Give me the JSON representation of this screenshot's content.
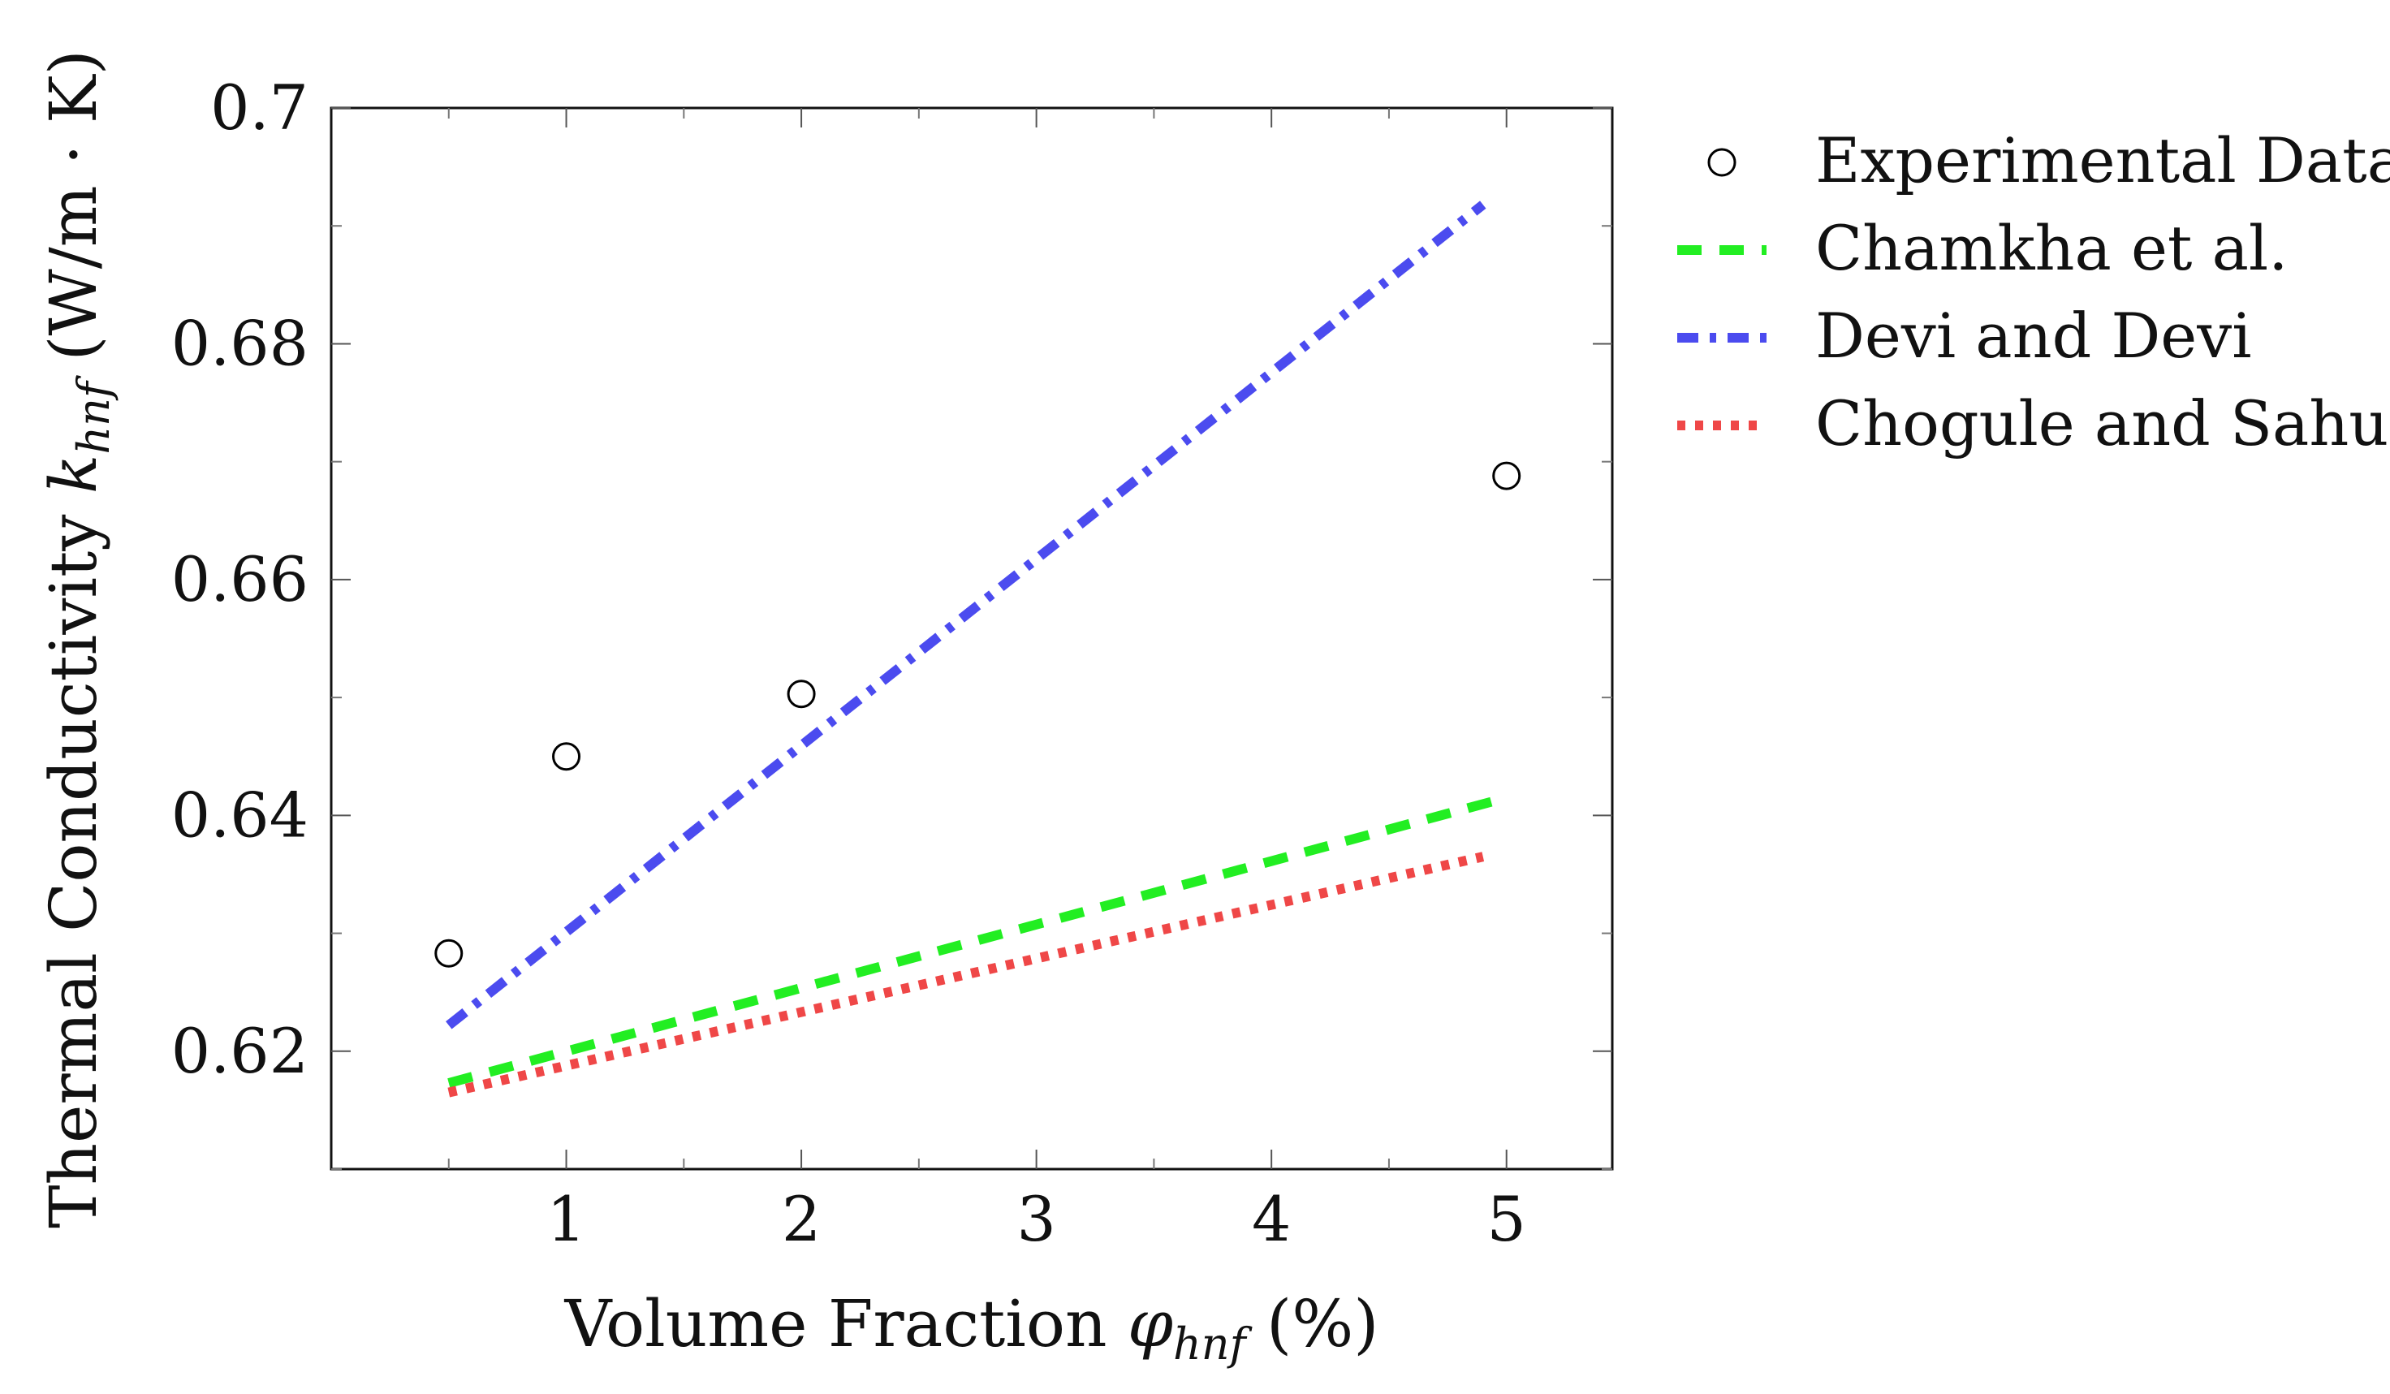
{
  "chart_data": {
    "type": "line",
    "title": "",
    "xlabel": {
      "prefix": "Volume Fraction ",
      "symbol": "φ",
      "subscript": "hnf",
      "suffix": " (%)"
    },
    "ylabel": {
      "prefix": "Thermal Conductivity ",
      "symbol": "k",
      "subscript": "hnf",
      "suffix": " (W/m · K)"
    },
    "xlim": [
      0,
      5.45
    ],
    "ylim": [
      0.61,
      0.7
    ],
    "x_ticks": [
      1,
      2,
      3,
      4,
      5
    ],
    "x_tick_labels": [
      "1",
      "2",
      "3",
      "4",
      "5"
    ],
    "y_ticks": [
      0.62,
      0.64,
      0.66,
      0.68,
      0.7
    ],
    "y_tick_labels": [
      "0.62",
      "0.64",
      "0.66",
      "0.68",
      "0.7"
    ],
    "grid": false,
    "legend_position": "outside-right",
    "series": [
      {
        "name": "Experimental Data",
        "style": "markers",
        "marker": "open-circle",
        "color": "#000000",
        "x": [
          0.5,
          1,
          2,
          5
        ],
        "y": [
          0.6283,
          0.645,
          0.6503,
          0.6688
        ]
      },
      {
        "name": "Chamkha et al.",
        "style": "dashed",
        "color": "#22ee22",
        "x": [
          0.5,
          5
        ],
        "y": [
          0.6173,
          0.6415
        ]
      },
      {
        "name": "Devi and Devi",
        "style": "dashdot",
        "color": "#4b4bef",
        "x": [
          0.5,
          4.9
        ],
        "y": [
          0.6222,
          0.6918
        ]
      },
      {
        "name": "Chogule and Sahu",
        "style": "dotted",
        "color": "#ef4747",
        "x": [
          0.5,
          4.9
        ],
        "y": [
          0.6165,
          0.6365
        ]
      }
    ]
  }
}
